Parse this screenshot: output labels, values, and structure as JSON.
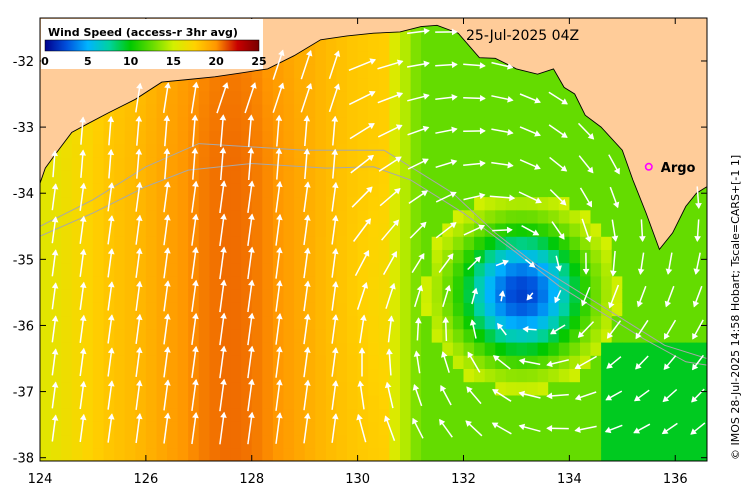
{
  "map": {
    "title": "Wind Speed (access-r 3hr avg)",
    "timestamp": "25-Jul-2025 04Z",
    "credit": "© IMOS 28-Jul-2025 14:58 Hobart; Tscale=CARS+[-1 1]",
    "extent": {
      "lon_min": 124,
      "lon_max": 136.6,
      "lat_min": -38.05,
      "lat_max": -31.35
    },
    "x_ticks": [
      {
        "value": 124,
        "label": "124"
      },
      {
        "value": 126,
        "label": "126"
      },
      {
        "value": 128,
        "label": "128"
      },
      {
        "value": 130,
        "label": "130"
      },
      {
        "value": 132,
        "label": "132"
      },
      {
        "value": 134,
        "label": "134"
      },
      {
        "value": 136,
        "label": "136"
      }
    ],
    "y_ticks": [
      {
        "value": -32,
        "label": "-32"
      },
      {
        "value": -33,
        "label": "-33"
      },
      {
        "value": -34,
        "label": "-34"
      },
      {
        "value": -35,
        "label": "-35"
      },
      {
        "value": -36,
        "label": "-36"
      },
      {
        "value": -37,
        "label": "-37"
      },
      {
        "value": -38,
        "label": "-38"
      }
    ],
    "colorbar": {
      "min": 0,
      "max": 25,
      "ticks": [
        {
          "value": 0,
          "label": "0"
        },
        {
          "value": 5,
          "label": "5"
        },
        {
          "value": 10,
          "label": "10"
        },
        {
          "value": 15,
          "label": "15"
        },
        {
          "value": 20,
          "label": "20"
        },
        {
          "value": 25,
          "label": "25"
        }
      ],
      "stops": [
        "#00008c",
        "#0050dc",
        "#00b4ff",
        "#00d2a0",
        "#00c800",
        "#64dc00",
        "#d2f000",
        "#ffd200",
        "#ff9600",
        "#c80000",
        "#780000"
      ]
    },
    "land_color": "#ffcc99",
    "low_center": {
      "lon": 133.1,
      "lat": -35.5
    },
    "argo": {
      "label": "Argo",
      "lon": 135.5,
      "lat": -33.6,
      "color": "#ff00ff"
    }
  }
}
